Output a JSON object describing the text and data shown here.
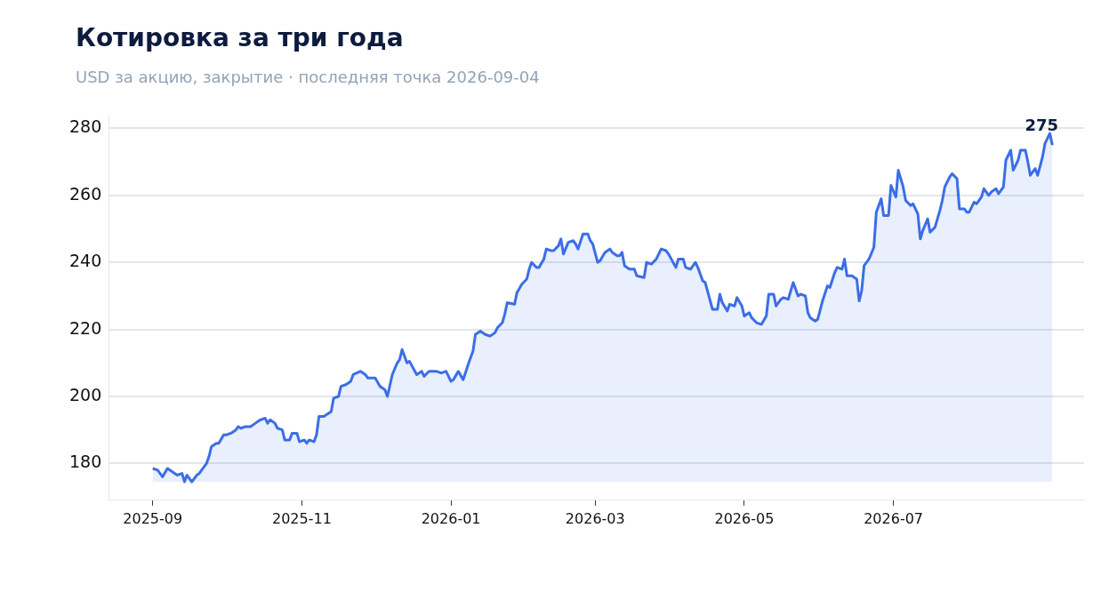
{
  "chart_data": {
    "type": "area",
    "title": "Котировка за три года",
    "subtitle": "USD за акцию, закрытие · последняя точка 2026-09-04",
    "x": [
      "2025-09-01",
      "2025-09-03",
      "2025-09-05",
      "2025-09-07",
      "2025-09-09",
      "2025-09-11",
      "2025-09-13",
      "2025-09-14",
      "2025-09-15",
      "2025-09-17",
      "2025-09-19",
      "2025-09-20",
      "2025-09-21",
      "2025-09-23",
      "2025-09-24",
      "2025-09-25",
      "2025-09-27",
      "2025-09-28",
      "2025-09-30",
      "2025-10-01",
      "2025-10-03",
      "2025-10-05",
      "2025-10-06",
      "2025-10-07",
      "2025-10-09",
      "2025-10-11",
      "2025-10-13",
      "2025-10-15",
      "2025-10-17",
      "2025-10-18",
      "2025-10-19",
      "2025-10-21",
      "2025-10-22",
      "2025-10-24",
      "2025-10-25",
      "2025-10-27",
      "2025-10-28",
      "2025-10-30",
      "2025-10-31",
      "2025-11-02",
      "2025-11-03",
      "2025-11-04",
      "2025-11-06",
      "2025-11-07",
      "2025-11-08",
      "2025-11-10",
      "2025-11-13",
      "2025-11-14",
      "2025-11-16",
      "2025-11-17",
      "2025-11-19",
      "2025-11-21",
      "2025-11-22",
      "2025-11-25",
      "2025-11-27",
      "2025-11-28",
      "2025-12-01",
      "2025-12-03",
      "2025-12-05",
      "2025-12-06",
      "2025-12-08",
      "2025-12-10",
      "2025-12-11",
      "2025-12-12",
      "2025-12-14",
      "2025-12-15",
      "2025-12-18",
      "2025-12-20",
      "2025-12-21",
      "2025-12-23",
      "2025-12-26",
      "2025-12-28",
      "2025-12-30",
      "2026-01-01",
      "2026-01-02",
      "2026-01-04",
      "2026-01-06",
      "2026-01-08",
      "2026-01-10",
      "2026-01-11",
      "2026-01-13",
      "2026-01-15",
      "2026-01-17",
      "2026-01-19",
      "2026-01-20",
      "2026-01-22",
      "2026-01-23",
      "2026-01-24",
      "2026-01-27",
      "2026-01-28",
      "2026-01-30",
      "2026-02-01",
      "2026-02-02",
      "2026-02-03",
      "2026-02-05",
      "2026-02-06",
      "2026-02-08",
      "2026-02-09",
      "2026-02-11",
      "2026-02-12",
      "2026-02-14",
      "2026-02-15",
      "2026-02-16",
      "2026-02-18",
      "2026-02-20",
      "2026-02-21",
      "2026-02-22",
      "2026-02-24",
      "2026-02-26",
      "2026-02-27",
      "2026-02-28",
      "2026-03-02",
      "2026-03-03",
      "2026-03-05",
      "2026-03-07",
      "2026-03-08",
      "2026-03-10",
      "2026-03-11",
      "2026-03-12",
      "2026-03-13",
      "2026-03-15",
      "2026-03-17",
      "2026-03-18",
      "2026-03-21",
      "2026-03-22",
      "2026-03-24",
      "2026-03-26",
      "2026-03-28",
      "2026-03-30",
      "2026-03-31",
      "2026-04-03",
      "2026-04-04",
      "2026-04-06",
      "2026-04-07",
      "2026-04-09",
      "2026-04-11",
      "2026-04-12",
      "2026-04-14",
      "2026-04-15",
      "2026-04-18",
      "2026-04-20",
      "2026-04-21",
      "2026-04-22",
      "2026-04-24",
      "2026-04-25",
      "2026-04-27",
      "2026-04-28",
      "2026-04-30",
      "2026-05-01",
      "2026-05-03",
      "2026-05-04",
      "2026-05-06",
      "2026-05-08",
      "2026-05-10",
      "2026-05-11",
      "2026-05-13",
      "2026-05-14",
      "2026-05-16",
      "2026-05-17",
      "2026-05-19",
      "2026-05-20",
      "2026-05-21",
      "2026-05-23",
      "2026-05-24",
      "2026-05-26",
      "2026-05-27",
      "2026-05-28",
      "2026-05-30",
      "2026-05-31",
      "2026-06-02",
      "2026-06-04",
      "2026-06-05",
      "2026-06-07",
      "2026-06-08",
      "2026-06-10",
      "2026-06-11",
      "2026-06-12",
      "2026-06-14",
      "2026-06-16",
      "2026-06-17",
      "2026-06-18",
      "2026-06-19",
      "2026-06-21",
      "2026-06-23",
      "2026-06-24",
      "2026-06-26",
      "2026-06-27",
      "2026-06-29",
      "2026-06-30",
      "2026-07-02",
      "2026-07-03",
      "2026-07-05",
      "2026-07-06",
      "2026-07-08",
      "2026-07-09",
      "2026-07-11",
      "2026-07-12",
      "2026-07-13",
      "2026-07-15",
      "2026-07-16",
      "2026-07-18",
      "2026-07-20",
      "2026-07-21",
      "2026-07-22",
      "2026-07-24",
      "2026-07-25",
      "2026-07-27",
      "2026-07-28",
      "2026-07-30",
      "2026-07-31",
      "2026-08-01",
      "2026-08-03",
      "2026-08-04",
      "2026-08-06",
      "2026-08-07",
      "2026-08-09",
      "2026-08-10",
      "2026-08-12",
      "2026-08-13",
      "2026-08-15",
      "2026-08-16",
      "2026-08-18",
      "2026-08-19",
      "2026-08-21",
      "2026-08-22",
      "2026-08-24",
      "2026-08-25",
      "2026-08-26",
      "2026-08-28",
      "2026-08-29",
      "2026-08-31",
      "2026-09-01",
      "2026-09-03",
      "2026-09-04"
    ],
    "series": [
      {
        "color": "#3b6ee6",
        "values": [
          178.5,
          178,
          176,
          178.5,
          177.5,
          176.5,
          177,
          174.5,
          176.5,
          174.5,
          176.5,
          177,
          178,
          180,
          182,
          185,
          186,
          186,
          188.5,
          188.5,
          189,
          190,
          191,
          190.5,
          191,
          191,
          192,
          193,
          193.5,
          192,
          193,
          192,
          190.5,
          190,
          187,
          187,
          189,
          189,
          186.5,
          187,
          186,
          187,
          186.5,
          188.5,
          194,
          194,
          195.5,
          199.5,
          200,
          203,
          203.5,
          204.5,
          206.5,
          207.5,
          206.5,
          205.5,
          205.5,
          203,
          202,
          200,
          206.5,
          210,
          211,
          214,
          210,
          210.5,
          206.5,
          207.5,
          206,
          207.5,
          207.5,
          207,
          207.5,
          204.5,
          205,
          207.5,
          205,
          209.5,
          213.5,
          218.5,
          219.5,
          218.5,
          218,
          219,
          220.5,
          222,
          224.5,
          228,
          227.5,
          231,
          233.5,
          235,
          238,
          240,
          238.5,
          238.5,
          241,
          244,
          243.5,
          243.5,
          245,
          247,
          242.5,
          246,
          246.5,
          245.5,
          244,
          248.5,
          248.5,
          246.5,
          245.5,
          240,
          240.5,
          243,
          244,
          243,
          242,
          242,
          243,
          239,
          238,
          238,
          236,
          235.5,
          240,
          239.5,
          241,
          244,
          243.5,
          242.5,
          238.5,
          241,
          241,
          238.5,
          238,
          240,
          238.5,
          234.5,
          234,
          226,
          226,
          230.5,
          228,
          225.5,
          227.5,
          227,
          229.5,
          227,
          224,
          225,
          223.5,
          222,
          221.5,
          224,
          230.5,
          230.5,
          227,
          229,
          229.5,
          229,
          231.5,
          234,
          230,
          230.5,
          230,
          225,
          223.5,
          222.5,
          223,
          228.5,
          233,
          232.5,
          237,
          238.5,
          238,
          241,
          236,
          236,
          235,
          228.5,
          231.5,
          239,
          241,
          244.5,
          255,
          259,
          254,
          254,
          263,
          259.5,
          267.5,
          262.5,
          258.5,
          257,
          257.5,
          254.5,
          247,
          249.5,
          253,
          249,
          250.5,
          255.5,
          258.5,
          262.5,
          265.5,
          266.5,
          265,
          256,
          256,
          255,
          255,
          258,
          257.5,
          259.5,
          262,
          260,
          261,
          262,
          260.5,
          262.5,
          270.5,
          273.5,
          267.5,
          270.5,
          273.5,
          273.5,
          270,
          266,
          268,
          266,
          271.5,
          275.5,
          278.5,
          275
        ]
      }
    ],
    "ylim": [
      169,
      284
    ],
    "yticks": [
      180,
      200,
      220,
      240,
      260,
      280
    ],
    "xlim": [
      "2025-08-14",
      "2026-09-17"
    ],
    "xticks": [
      "2025-09",
      "2025-11",
      "2026-01",
      "2026-03",
      "2026-05",
      "2026-07"
    ],
    "grid": "y",
    "marker": "none",
    "line_style": "solid",
    "annotations": [
      {
        "text": "275",
        "x": "2026-09-04",
        "y": 275
      }
    ]
  }
}
